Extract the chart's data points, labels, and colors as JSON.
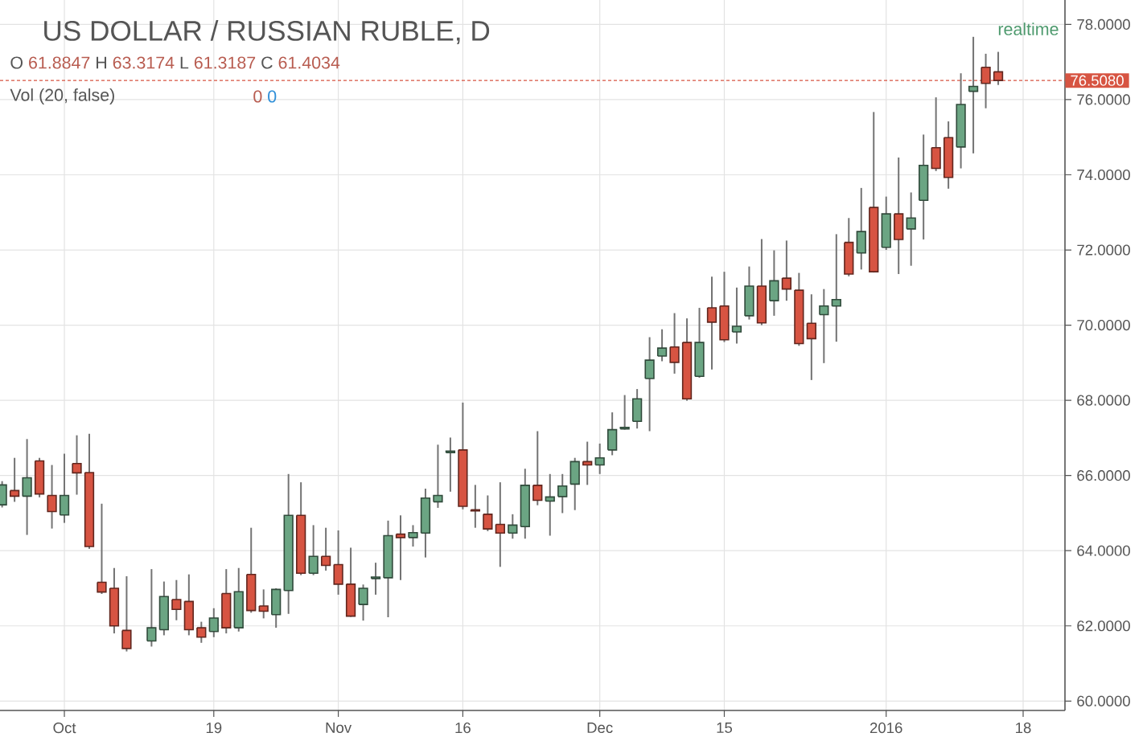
{
  "chart_data": {
    "type": "candlestick",
    "title": "US DOLLAR / RUSSIAN RUBLE, D",
    "categories": [
      null,
      null,
      null,
      null,
      null,
      "Oct",
      null,
      null,
      null,
      null,
      null,
      null,
      null,
      null,
      null,
      null,
      null,
      "19",
      null,
      null,
      null,
      null,
      null,
      null,
      null,
      null,
      null,
      "Nov",
      null,
      null,
      null,
      null,
      null,
      null,
      null,
      null,
      null,
      "16",
      null,
      null,
      null,
      null,
      null,
      null,
      null,
      null,
      null,
      null,
      "Dec",
      null,
      null,
      null,
      null,
      null,
      null,
      null,
      null,
      null,
      "15",
      null,
      null,
      null,
      null,
      null,
      null,
      null,
      null,
      null,
      null,
      null,
      null,
      "2016",
      null,
      null,
      null,
      null,
      null,
      null,
      null,
      null,
      null,
      null,
      "18"
    ],
    "ohlc": [
      [
        65.22,
        65.85,
        65.15,
        65.75
      ],
      [
        65.6,
        66.47,
        65.3,
        65.45
      ],
      [
        65.45,
        66.97,
        64.42,
        65.94
      ],
      [
        66.39,
        66.47,
        65.42,
        65.51
      ],
      [
        65.47,
        66.28,
        64.59,
        65.04
      ],
      [
        64.95,
        66.58,
        64.74,
        65.47
      ],
      [
        66.32,
        67.07,
        65.49,
        66.07
      ],
      [
        66.08,
        67.11,
        64.05,
        64.11
      ],
      [
        63.16,
        65.25,
        62.85,
        62.9
      ],
      [
        63.0,
        63.54,
        61.8,
        62.0
      ],
      [
        61.88,
        63.32,
        61.32,
        61.4
      ],
      null,
      [
        61.6,
        63.51,
        61.45,
        61.95
      ],
      [
        61.9,
        63.18,
        61.75,
        62.78
      ],
      [
        62.7,
        63.22,
        62.15,
        62.44
      ],
      [
        62.65,
        63.37,
        61.75,
        61.9
      ],
      [
        61.95,
        62.11,
        61.55,
        61.7
      ],
      [
        61.85,
        62.47,
        61.7,
        62.21
      ],
      [
        62.86,
        63.51,
        61.8,
        61.95
      ],
      [
        61.95,
        63.54,
        61.85,
        62.91
      ],
      [
        63.37,
        64.61,
        62.35,
        62.41
      ],
      [
        62.53,
        62.97,
        62.2,
        62.39
      ],
      [
        62.3,
        63.0,
        61.95,
        62.97
      ],
      [
        62.94,
        66.04,
        62.32,
        64.94
      ],
      [
        64.94,
        65.82,
        63.35,
        63.4
      ],
      [
        63.4,
        64.68,
        63.35,
        63.85
      ],
      [
        63.85,
        64.61,
        63.47,
        63.61
      ],
      [
        63.63,
        64.54,
        62.83,
        63.11
      ],
      [
        63.11,
        64.08,
        62.24,
        62.26
      ],
      [
        62.57,
        63.1,
        62.14,
        63.0
      ],
      [
        63.26,
        63.68,
        62.83,
        63.3
      ],
      [
        63.28,
        64.8,
        62.23,
        64.4
      ],
      [
        64.44,
        64.94,
        63.22,
        64.35
      ],
      [
        64.35,
        64.68,
        64.11,
        64.48
      ],
      [
        64.47,
        65.65,
        63.82,
        65.4
      ],
      [
        65.3,
        66.82,
        65.14,
        65.47
      ],
      [
        66.61,
        67.01,
        65.57,
        66.65
      ],
      [
        66.68,
        67.94,
        65.1,
        65.18
      ],
      [
        65.09,
        65.75,
        64.61,
        65.06
      ],
      [
        64.97,
        65.47,
        64.52,
        64.58
      ],
      [
        64.7,
        65.82,
        63.57,
        64.47
      ],
      [
        64.47,
        64.97,
        64.32,
        64.68
      ],
      [
        64.64,
        66.18,
        64.32,
        65.74
      ],
      [
        65.74,
        67.18,
        65.21,
        65.34
      ],
      [
        65.32,
        66.04,
        64.4,
        65.43
      ],
      [
        65.44,
        66.04,
        65.0,
        65.72
      ],
      [
        65.77,
        66.47,
        65.08,
        66.37
      ],
      [
        66.37,
        66.9,
        65.75,
        66.28
      ],
      [
        66.28,
        66.85,
        66.04,
        66.47
      ],
      [
        66.68,
        67.68,
        66.54,
        67.22
      ],
      [
        67.24,
        68.14,
        67.22,
        67.28
      ],
      [
        67.44,
        68.3,
        67.25,
        68.04
      ],
      [
        68.58,
        69.68,
        67.18,
        69.07
      ],
      [
        69.18,
        69.89,
        69.04,
        69.39
      ],
      [
        69.42,
        70.32,
        68.71,
        69.01
      ],
      [
        69.54,
        70.18,
        67.99,
        68.04
      ],
      [
        68.64,
        70.46,
        68.6,
        69.54
      ],
      [
        70.46,
        71.29,
        68.82,
        70.08
      ],
      [
        70.51,
        71.42,
        69.55,
        69.61
      ],
      [
        69.82,
        71.0,
        69.51,
        69.97
      ],
      [
        70.25,
        71.56,
        70.15,
        71.04
      ],
      [
        71.04,
        72.29,
        70.0,
        70.06
      ],
      [
        70.65,
        71.99,
        70.25,
        71.18
      ],
      [
        71.25,
        72.25,
        70.65,
        70.96
      ],
      [
        70.93,
        71.39,
        69.45,
        69.51
      ],
      [
        70.05,
        70.82,
        68.54,
        69.64
      ],
      [
        70.28,
        70.96,
        68.99,
        70.51
      ],
      [
        70.51,
        72.42,
        69.56,
        70.68
      ],
      [
        72.2,
        72.85,
        71.3,
        71.36
      ],
      [
        71.92,
        73.65,
        71.48,
        72.49
      ],
      [
        73.13,
        75.67,
        71.4,
        71.42
      ],
      [
        72.07,
        73.42,
        72.0,
        72.96
      ],
      [
        72.96,
        74.46,
        71.36,
        72.28
      ],
      [
        72.56,
        73.53,
        71.58,
        72.85
      ],
      [
        73.32,
        75.07,
        72.28,
        74.25
      ],
      [
        74.72,
        76.06,
        74.1,
        74.17
      ],
      [
        74.99,
        75.42,
        73.63,
        73.93
      ],
      [
        74.74,
        76.7,
        74.17,
        75.87
      ],
      [
        76.22,
        77.67,
        74.57,
        76.35
      ],
      [
        76.86,
        77.22,
        75.77,
        76.43
      ],
      [
        76.74,
        77.27,
        76.39,
        76.51
      ],
      null,
      null
    ],
    "colors": [
      "#6ba583",
      "#d75442",
      "#6ba583",
      "#d75442",
      "#d75442",
      "#6ba583",
      "#d75442",
      "#d75442",
      "#d75442",
      "#d75442",
      "#d75442",
      null,
      "#6ba583",
      "#6ba583",
      "#d75442",
      "#d75442",
      "#d75442",
      "#6ba583",
      "#d75442",
      "#6ba583",
      "#d75442",
      "#d75442",
      "#6ba583",
      "#6ba583",
      "#d75442",
      "#6ba583",
      "#d75442",
      "#d75442",
      "#d75442",
      "#6ba583",
      "#6ba583",
      "#6ba583",
      "#d75442",
      "#6ba583",
      "#6ba583",
      "#6ba583",
      "#6ba583",
      "#d75442",
      "#d75442",
      "#d75442",
      "#d75442",
      "#6ba583",
      "#6ba583",
      "#d75442",
      "#6ba583",
      "#6ba583",
      "#6ba583",
      "#d75442",
      "#6ba583",
      "#6ba583",
      "#6ba583",
      "#6ba583",
      "#6ba583",
      "#6ba583",
      "#d75442",
      "#d75442",
      "#6ba583",
      "#d75442",
      "#d75442",
      "#6ba583",
      "#6ba583",
      "#d75442",
      "#6ba583",
      "#d75442",
      "#d75442",
      "#d75442",
      "#6ba583",
      "#6ba583",
      "#d75442",
      "#6ba583",
      "#d75442",
      "#6ba583",
      "#d75442",
      "#6ba583",
      "#6ba583",
      "#d75442",
      "#d75442",
      "#6ba583",
      "#6ba583",
      "#d75442",
      "#d75442",
      null,
      null
    ],
    "ylim": [
      59.75,
      78.65
    ],
    "yticks": [
      {
        "value": 60,
        "label": "60.0000"
      },
      {
        "value": 62,
        "label": "62.0000"
      },
      {
        "value": 64,
        "label": "64.0000"
      },
      {
        "value": 66,
        "label": "66.0000"
      },
      {
        "value": 68,
        "label": "68.0000"
      },
      {
        "value": 70,
        "label": "70.0000"
      },
      {
        "value": 72,
        "label": "72.0000"
      },
      {
        "value": 74,
        "label": "74.0000"
      },
      {
        "value": 76,
        "label": "76.0000"
      },
      {
        "value": 78,
        "label": "78.0000"
      }
    ],
    "grid": true,
    "ref_lines": [
      {
        "axis": "y",
        "value": 76.508,
        "label": "76.5080",
        "color": "#d75442",
        "line_style": "dashed"
      }
    ],
    "annotations": [
      "O 61.8847 H 63.3174 L 61.3187 C 61.4034",
      "Vol (20, false)",
      "0 0",
      "realtime"
    ]
  }
}
